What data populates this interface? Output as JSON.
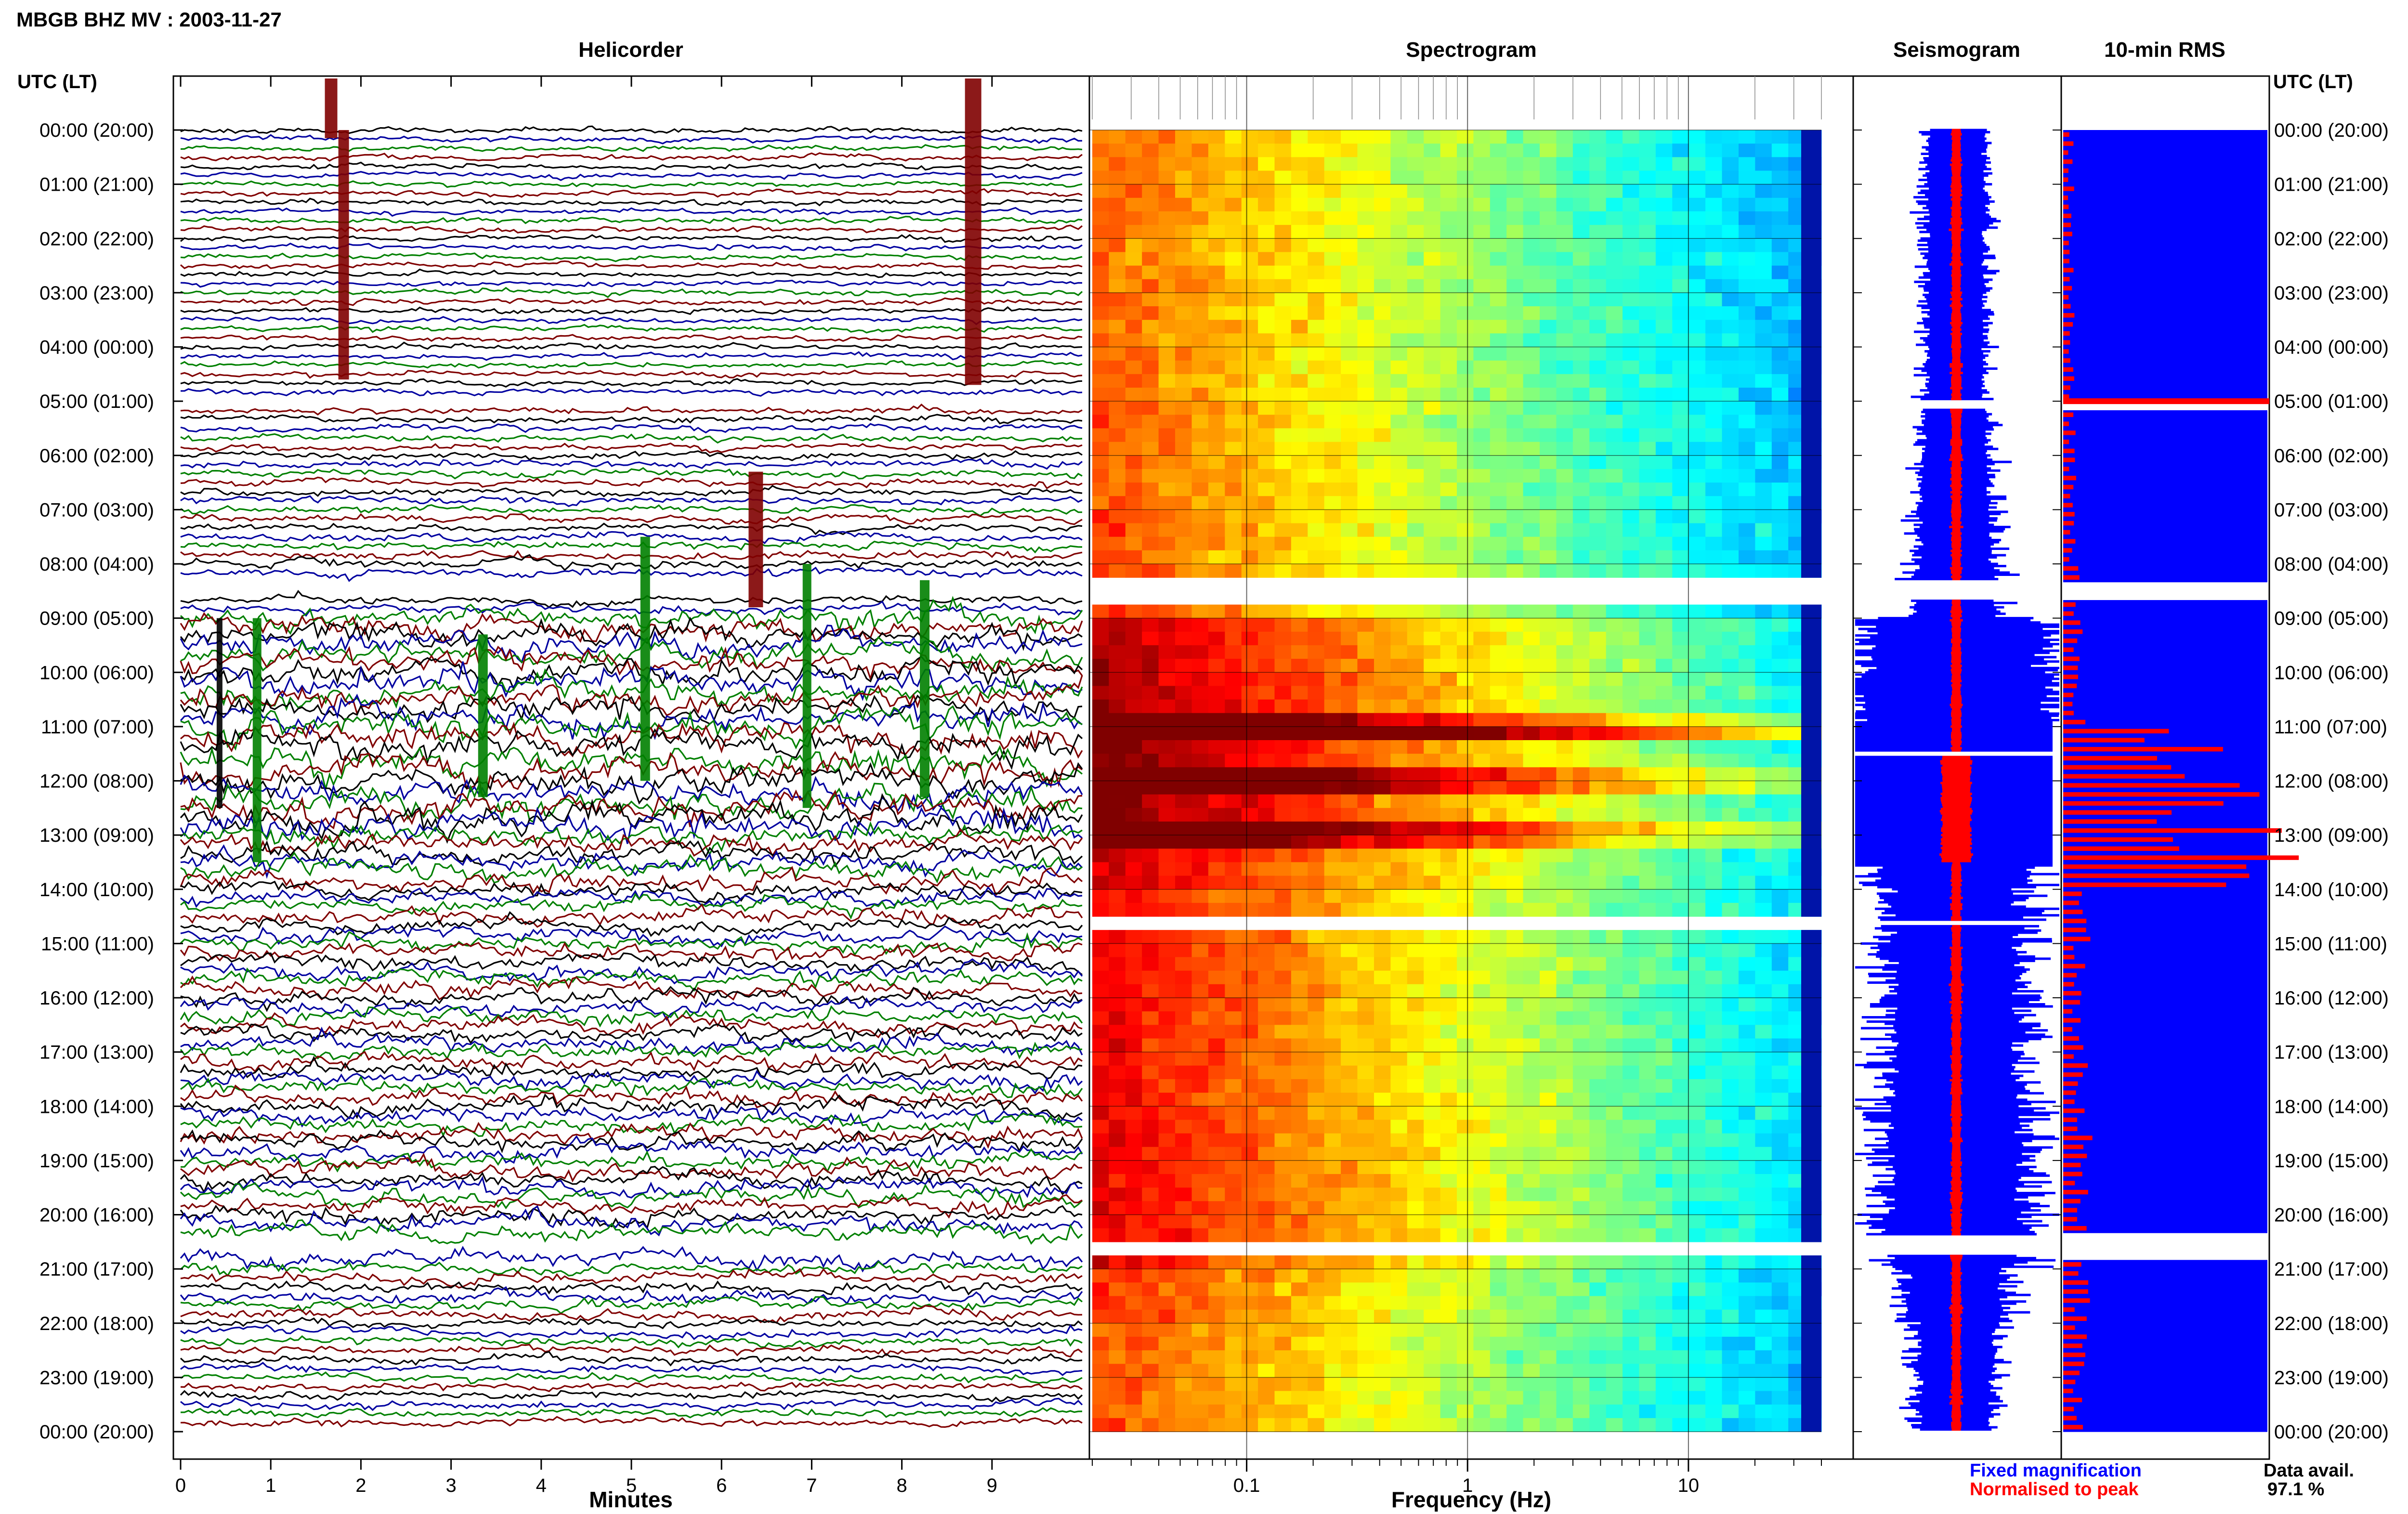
{
  "header": {
    "station_title": "MBGB BHZ MV : 2003-11-27"
  },
  "panels": {
    "helicorder": "Helicorder",
    "spectrogram": "Spectrogram",
    "seismogram": "Seismogram",
    "rms": "10-min RMS"
  },
  "time_axis": {
    "label": "UTC (LT)",
    "ticks": [
      "00:00 (20:00)",
      "01:00 (21:00)",
      "02:00 (22:00)",
      "03:00 (23:00)",
      "04:00 (00:00)",
      "05:00 (01:00)",
      "06:00 (02:00)",
      "07:00 (03:00)",
      "08:00 (04:00)",
      "09:00 (05:00)",
      "10:00 (06:00)",
      "11:00 (07:00)",
      "12:00 (08:00)",
      "13:00 (09:00)",
      "14:00 (10:00)",
      "15:00 (11:00)",
      "16:00 (12:00)",
      "17:00 (13:00)",
      "18:00 (14:00)",
      "19:00 (15:00)",
      "20:00 (16:00)",
      "21:00 (17:00)",
      "22:00 (18:00)",
      "23:00 (19:00)",
      "00:00 (20:00)"
    ]
  },
  "helicorder_axis": {
    "label": "Minutes",
    "ticks": [
      "0",
      "1",
      "2",
      "3",
      "4",
      "5",
      "6",
      "7",
      "8",
      "9"
    ]
  },
  "spectrogram_axis": {
    "label": "Frequency (Hz)",
    "ticks": [
      "0.1",
      "1",
      "10"
    ]
  },
  "legend": {
    "fixed": "Fixed magnification",
    "normalised": "Normalised to peak",
    "fixed_color": "#0000ff",
    "normalised_color": "#ff0000"
  },
  "data_availability": {
    "label": "Data avail.",
    "value": "97.1 %"
  },
  "chart_data": {
    "type": "heatmap",
    "title": "MBGB BHZ MV : 2003-11-27",
    "time_range_utc_hours": [
      0,
      24
    ],
    "helicorder": {
      "xlabel": "Minutes",
      "xlim": [
        0,
        10
      ],
      "trace_colors": [
        "#000000",
        "#0000a0",
        "#008000",
        "#800000"
      ],
      "activity_by_hour": [
        1.0,
        1.0,
        1.0,
        1.0,
        1.0,
        1.2,
        1.3,
        1.4,
        1.6,
        4.0,
        4.5,
        5.0,
        5.0,
        3.5,
        2.8,
        2.8,
        2.8,
        2.8,
        3.0,
        3.0,
        3.0,
        2.0,
        1.5,
        1.4
      ]
    },
    "spectrogram": {
      "xlabel": "Frequency (Hz)",
      "xscale": "log",
      "xlim": [
        0.02,
        40
      ],
      "colormap": "jet"
    },
    "data_gaps_utc_hours": [
      [
        5.0,
        5.12
      ],
      [
        8.3,
        8.65
      ],
      [
        11.45,
        11.52
      ],
      [
        14.6,
        14.65
      ],
      [
        20.4,
        20.75
      ]
    ],
    "rms_10min": {
      "label": "10-min RMS",
      "relative_by_hour": [
        0.04,
        0.04,
        0.04,
        0.04,
        0.04,
        0.05,
        0.05,
        0.05,
        0.06,
        0.07,
        0.08,
        0.55,
        0.75,
        0.9,
        0.1,
        0.08,
        0.08,
        0.09,
        0.1,
        0.1,
        0.1,
        0.1,
        0.09,
        0.08
      ]
    },
    "data_availability_percent": 97.1
  }
}
